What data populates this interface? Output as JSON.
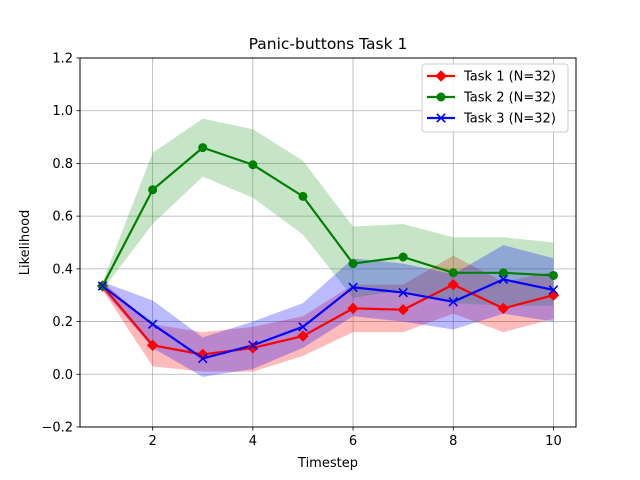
{
  "chart_data": {
    "type": "line",
    "title": "Panic-buttons Task 1",
    "xlabel": "Timestep",
    "ylabel": "Likelihood",
    "xlim": [
      0.55,
      10.45
    ],
    "ylim": [
      -0.2,
      1.2
    ],
    "xticks": [
      2,
      4,
      6,
      8,
      10
    ],
    "yticks": [
      -0.2,
      0.0,
      0.2,
      0.4,
      0.6,
      0.8,
      1.0,
      1.2
    ],
    "ytick_labels": [
      "−0.2",
      "0.0",
      "0.2",
      "0.4",
      "0.6",
      "0.8",
      "1.0",
      "1.2"
    ],
    "grid": true,
    "legend_position": "top-right",
    "x": [
      1,
      2,
      3,
      4,
      5,
      6,
      7,
      8,
      9,
      10
    ],
    "series": [
      {
        "name": "Task 1 (N=32)",
        "color": "#ff0000",
        "band_color": "#ff0000",
        "marker": "diamond",
        "values": [
          0.335,
          0.11,
          0.075,
          0.1,
          0.145,
          0.25,
          0.245,
          0.34,
          0.25,
          0.3
        ],
        "lower": [
          0.32,
          0.03,
          0.01,
          0.01,
          0.07,
          0.16,
          0.16,
          0.23,
          0.16,
          0.21
        ],
        "upper": [
          0.35,
          0.19,
          0.16,
          0.18,
          0.22,
          0.34,
          0.34,
          0.45,
          0.35,
          0.39
        ]
      },
      {
        "name": "Task 2 (N=32)",
        "color": "#008000",
        "band_color": "#2ca02c",
        "marker": "circle",
        "values": [
          0.335,
          0.7,
          0.86,
          0.795,
          0.675,
          0.42,
          0.445,
          0.385,
          0.385,
          0.375
        ],
        "lower": [
          0.32,
          0.57,
          0.75,
          0.67,
          0.53,
          0.29,
          0.32,
          0.27,
          0.26,
          0.26
        ],
        "upper": [
          0.35,
          0.84,
          0.97,
          0.93,
          0.81,
          0.56,
          0.57,
          0.52,
          0.52,
          0.5
        ]
      },
      {
        "name": "Task 3 (N=32)",
        "color": "#0000ff",
        "band_color": "#0000ff",
        "marker": "x",
        "values": [
          0.335,
          0.19,
          0.06,
          0.11,
          0.18,
          0.33,
          0.31,
          0.275,
          0.36,
          0.32
        ],
        "lower": [
          0.32,
          0.1,
          -0.01,
          0.02,
          0.1,
          0.22,
          0.2,
          0.17,
          0.23,
          0.2
        ],
        "upper": [
          0.35,
          0.28,
          0.14,
          0.2,
          0.27,
          0.44,
          0.42,
          0.38,
          0.49,
          0.44
        ]
      }
    ]
  }
}
